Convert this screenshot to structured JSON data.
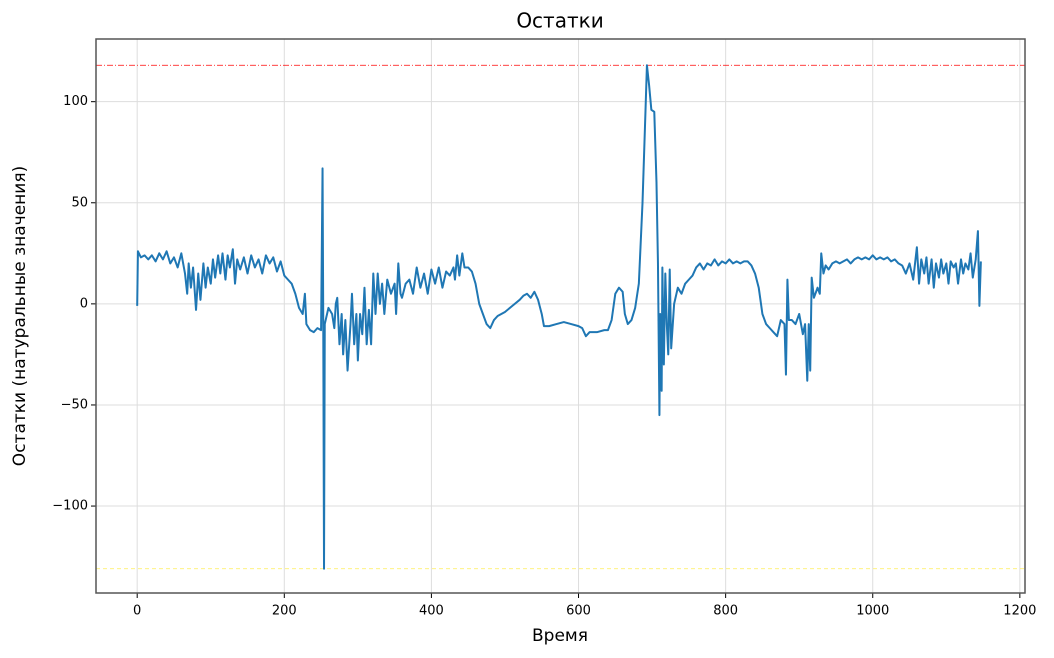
{
  "chart_data": {
    "type": "line",
    "title": "Остатки",
    "xlabel": "Время",
    "ylabel": "Остатки (натуральные значения)",
    "xlim": [
      -56,
      1207
    ],
    "ylim": [
      -143,
      131
    ],
    "xticks": [
      0,
      200,
      400,
      600,
      800,
      1000,
      1200
    ],
    "yticks": [
      {
        "value": -100,
        "label": "−100"
      },
      {
        "value": -50,
        "label": "−50"
      },
      0,
      50,
      100
    ],
    "grid": true,
    "hlines": [
      {
        "value": 118,
        "color": "#ff0000",
        "style": "dashdot"
      },
      {
        "value": -131,
        "color": "#ffee55",
        "style": "dashed"
      }
    ],
    "x": [
      0,
      1,
      5,
      10,
      15,
      20,
      25,
      30,
      35,
      40,
      45,
      50,
      55,
      60,
      65,
      68,
      70,
      73,
      76,
      80,
      83,
      86,
      90,
      93,
      96,
      100,
      103,
      106,
      110,
      113,
      116,
      120,
      123,
      126,
      130,
      133,
      136,
      140,
      145,
      150,
      155,
      160,
      165,
      170,
      175,
      180,
      185,
      190,
      195,
      200,
      205,
      210,
      215,
      220,
      225,
      228,
      230,
      235,
      240,
      245,
      250,
      252,
      253,
      254,
      255,
      260,
      265,
      268,
      270,
      272,
      275,
      278,
      280,
      283,
      286,
      290,
      292,
      295,
      298,
      300,
      303,
      306,
      309,
      312,
      315,
      318,
      321,
      324,
      327,
      330,
      333,
      336,
      340,
      345,
      350,
      352,
      355,
      358,
      360,
      365,
      370,
      375,
      380,
      385,
      390,
      395,
      400,
      405,
      410,
      415,
      420,
      425,
      430,
      432,
      435,
      438,
      442,
      445,
      450,
      455,
      460,
      465,
      470,
      475,
      480,
      485,
      490,
      500,
      510,
      520,
      525,
      530,
      535,
      540,
      545,
      550,
      553,
      560,
      570,
      580,
      590,
      600,
      605,
      610,
      615,
      625,
      635,
      640,
      645,
      650,
      655,
      660,
      663,
      667,
      672,
      677,
      682,
      687,
      691,
      693,
      696,
      699,
      703,
      706,
      708,
      710,
      711,
      713,
      714,
      716,
      718,
      720,
      722,
      724,
      726,
      730,
      735,
      740,
      745,
      750,
      755,
      760,
      765,
      770,
      775,
      780,
      785,
      790,
      795,
      800,
      805,
      810,
      815,
      820,
      825,
      830,
      835,
      840,
      845,
      850,
      855,
      860,
      865,
      870,
      875,
      880,
      882,
      884,
      886,
      890,
      895,
      900,
      905,
      908,
      911,
      913,
      915,
      917,
      920,
      925,
      928,
      930,
      933,
      936,
      940,
      945,
      950,
      955,
      960,
      965,
      970,
      975,
      980,
      985,
      990,
      995,
      1000,
      1005,
      1010,
      1015,
      1020,
      1025,
      1030,
      1035,
      1040,
      1045,
      1050,
      1055,
      1060,
      1063,
      1066,
      1070,
      1073,
      1076,
      1080,
      1083,
      1086,
      1090,
      1093,
      1096,
      1100,
      1103,
      1106,
      1110,
      1113,
      1116,
      1120,
      1123,
      1126,
      1130,
      1133,
      1136,
      1140,
      1143,
      1145,
      1147
    ],
    "series": [
      {
        "color": "#1f77b4",
        "values": [
          -1,
          26,
          23,
          24,
          22,
          24,
          21,
          25,
          22,
          26,
          20,
          23,
          18,
          25,
          15,
          5,
          20,
          8,
          18,
          -3,
          15,
          2,
          20,
          8,
          18,
          10,
          22,
          13,
          24,
          15,
          25,
          12,
          24,
          18,
          27,
          10,
          22,
          17,
          23,
          15,
          24,
          18,
          22,
          15,
          24,
          20,
          23,
          16,
          21,
          14,
          12,
          10,
          5,
          -2,
          -5,
          5,
          -10,
          -13,
          -14,
          -12,
          -13,
          67,
          -14,
          -131,
          -10,
          -2,
          -5,
          -12,
          0,
          3,
          -20,
          -5,
          -25,
          -8,
          -33,
          -10,
          5,
          -20,
          -5,
          -28,
          -5,
          -15,
          8,
          -20,
          -3,
          -20,
          15,
          -5,
          15,
          0,
          10,
          -5,
          12,
          5,
          10,
          -5,
          20,
          5,
          3,
          10,
          12,
          5,
          18,
          8,
          15,
          5,
          17,
          10,
          18,
          8,
          16,
          14,
          18,
          12,
          24,
          14,
          25,
          18,
          18,
          16,
          10,
          0,
          -5,
          -10,
          -12,
          -8,
          -6,
          -4,
          -1,
          2,
          4,
          5,
          3,
          6,
          2,
          -5,
          -11,
          -11,
          -10,
          -9,
          -10,
          -11,
          -12,
          -16,
          -14,
          -14,
          -13,
          -13,
          -8,
          5,
          8,
          6,
          -5,
          -10,
          -8,
          -2,
          10,
          50,
          95,
          118,
          108,
          96,
          95,
          60,
          20,
          -55,
          -5,
          -43,
          18,
          -30,
          15,
          -10,
          -25,
          17,
          -22,
          0,
          8,
          5,
          10,
          12,
          14,
          18,
          20,
          17,
          20,
          19,
          22,
          19,
          21,
          20,
          22,
          20,
          21,
          20,
          21,
          21,
          19,
          15,
          8,
          -5,
          -10,
          -12,
          -14,
          -16,
          -8,
          -10,
          -35,
          12,
          -8,
          -8,
          -10,
          -5,
          -15,
          -10,
          -38,
          -10,
          -33,
          13,
          3,
          8,
          5,
          25,
          15,
          19,
          17,
          20,
          21,
          20,
          21,
          22,
          20,
          22,
          23,
          22,
          23,
          22,
          24,
          22,
          23,
          22,
          23,
          21,
          22,
          20,
          19,
          15,
          20,
          12,
          28,
          10,
          22,
          15,
          23,
          10,
          22,
          8,
          20,
          13,
          22,
          15,
          20,
          10,
          21,
          18,
          20,
          10,
          22,
          15,
          20,
          17,
          25,
          13,
          22,
          36,
          -1,
          21
        ]
      }
    ]
  }
}
